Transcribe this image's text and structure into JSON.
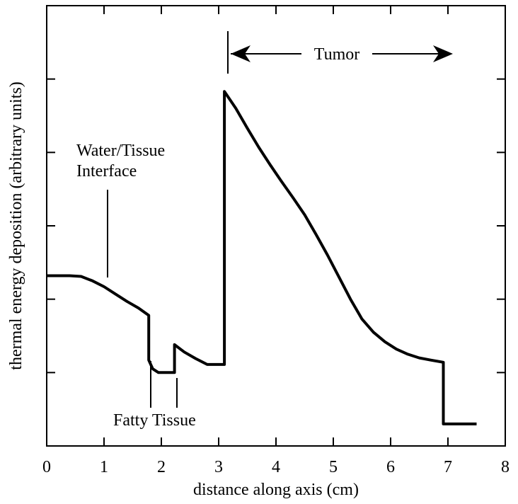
{
  "chart_data": {
    "type": "line",
    "title": "",
    "xlabel": "distance along axis (cm)",
    "ylabel": "thermal energy deposition (arbitrary units)",
    "xlim": [
      0,
      8
    ],
    "ylim": [
      0,
      6
    ],
    "x_ticks": [
      "0",
      "1",
      "2",
      "3",
      "4",
      "5",
      "6",
      "7",
      "8"
    ],
    "y_tick_count": 6,
    "y_tick_labels_shown": false,
    "grid": false,
    "legend": "none",
    "line_color": "#000000",
    "series": [
      {
        "x": [
          0,
          0.2,
          0.4,
          0.6,
          0.8,
          1.0,
          1.2,
          1.4,
          1.6,
          1.78,
          1.78,
          1.85,
          1.95,
          2.05,
          2.15,
          2.23,
          2.23,
          2.4,
          2.6,
          2.8,
          3.0,
          3.1,
          3.1,
          3.3,
          3.5,
          3.7,
          3.9,
          4.1,
          4.3,
          4.5,
          4.7,
          4.9,
          5.1,
          5.3,
          5.5,
          5.7,
          5.9,
          6.1,
          6.3,
          6.5,
          6.7,
          6.92,
          6.92,
          7.0,
          7.25,
          7.5
        ],
        "y": [
          2.32,
          2.32,
          2.32,
          2.31,
          2.25,
          2.17,
          2.07,
          1.97,
          1.88,
          1.78,
          1.17,
          1.05,
          1.0,
          1.0,
          1.0,
          1.0,
          1.38,
          1.28,
          1.19,
          1.11,
          1.11,
          1.11,
          4.83,
          4.6,
          4.33,
          4.07,
          3.83,
          3.6,
          3.38,
          3.15,
          2.88,
          2.6,
          2.3,
          2.0,
          1.73,
          1.55,
          1.42,
          1.32,
          1.25,
          1.2,
          1.17,
          1.14,
          0.3,
          0.3,
          0.3,
          0.3
        ]
      }
    ],
    "annotations": {
      "water_tissue_line1": "Water/Tissue",
      "water_tissue_line2": "Interface",
      "fatty_tissue": "Fatty Tissue",
      "tumor": "Tumor"
    }
  }
}
